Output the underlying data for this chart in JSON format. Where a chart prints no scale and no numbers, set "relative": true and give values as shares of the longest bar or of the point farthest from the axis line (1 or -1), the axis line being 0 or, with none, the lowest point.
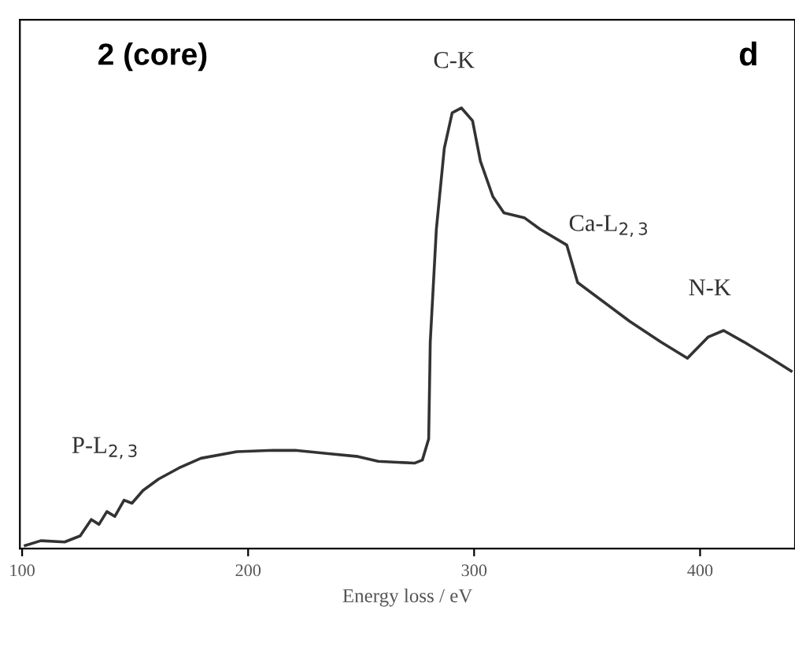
{
  "chart_data": {
    "type": "line",
    "relative": true,
    "xlabel": "Energy loss / eV",
    "xlim": [
      99,
      442
    ],
    "xticks": [
      100,
      200,
      300,
      400
    ],
    "grid": false,
    "legend": false,
    "marker": "none",
    "line_style": "solid",
    "annotations": [
      "2 (core)",
      "d",
      "C-K",
      "Ca-L$_{2,3}$",
      "N-K",
      "P-L$_{2,3}$"
    ],
    "series": [
      {
        "color": "#333333",
        "x": [
          101.4,
          108.3,
          118.8,
          125.7,
          130.6,
          134,
          137.5,
          141,
          145.1,
          148.6,
          153.5,
          160.4,
          169.4,
          179.1,
          195,
          211,
          220.8,
          234.7,
          248.6,
          257.6,
          273.6,
          277.1,
          279.9,
          280.6,
          283.3,
          286.8,
          290.3,
          294.4,
          299.3,
          302.8,
          308.3,
          313.2,
          322.2,
          329.2,
          341,
          345.8,
          368.8,
          382.6,
          394.4,
          403.5,
          410.4,
          419.4,
          431.3,
          440.3
        ],
        "values": [
          0.007,
          0.018,
          0.015,
          0.029,
          0.066,
          0.055,
          0.084,
          0.073,
          0.11,
          0.103,
          0.132,
          0.158,
          0.183,
          0.205,
          0.22,
          0.223,
          0.223,
          0.216,
          0.209,
          0.198,
          0.194,
          0.201,
          0.249,
          0.469,
          0.725,
          0.908,
          0.989,
          1,
          0.971,
          0.879,
          0.799,
          0.762,
          0.751,
          0.725,
          0.689,
          0.604,
          0.516,
          0.469,
          0.432,
          0.48,
          0.495,
          0.469,
          0.432,
          0.403
        ]
      }
    ]
  }
}
